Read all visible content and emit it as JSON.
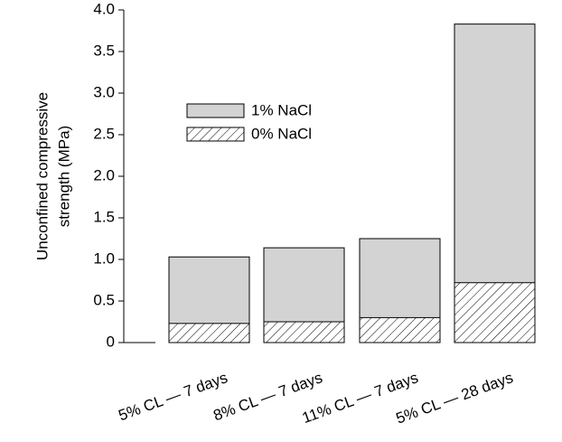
{
  "chart_data": {
    "type": "bar",
    "overlap": true,
    "ylabel": [
      "Unconfined compressive",
      "strength (MPa)"
    ],
    "categories": [
      "5% CL — 7 days",
      "8% CL — 7 days",
      "11% CL — 7 days",
      "5% CL — 28 days"
    ],
    "series": [
      {
        "name": "1% NaCl",
        "color": "#d3d3d3",
        "hatch": false,
        "values": [
          1.03,
          1.14,
          1.25,
          3.83
        ]
      },
      {
        "name": "0% NaCl",
        "color": "#000000",
        "hatch": true,
        "values": [
          0.23,
          0.25,
          0.3,
          0.72
        ]
      }
    ],
    "ylim": [
      0,
      4
    ],
    "yticks": [
      0,
      0.5,
      {
        "value": 1,
        "label": "1.0"
      },
      1.5,
      {
        "value": 2,
        "label": "2.0"
      },
      2.5,
      {
        "value": 3,
        "label": "3.0"
      },
      3.5,
      {
        "value": 4,
        "label": "4.0"
      }
    ],
    "grid": false
  }
}
